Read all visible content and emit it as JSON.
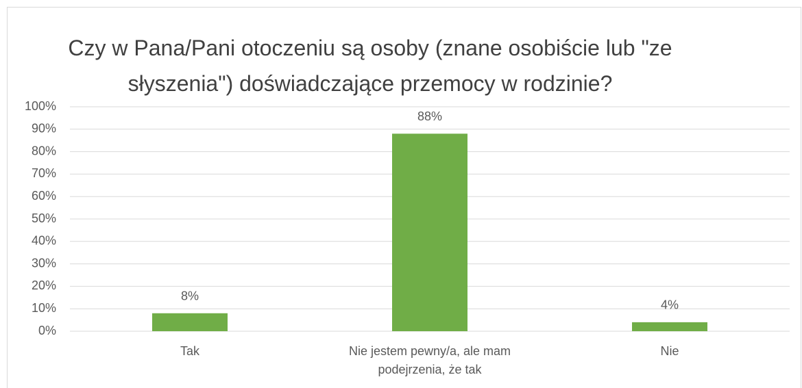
{
  "chart_data": {
    "type": "bar",
    "title": "Czy w Pana/Pani otoczeniu są osoby (znane osobiście lub \"ze słyszenia\") doświadczające przemocy w rodzinie?",
    "categories": [
      "Tak",
      "Nie jestem pewny/a, ale mam podejrzenia, że tak",
      "Nie"
    ],
    "values": [
      8,
      88,
      4
    ],
    "value_labels": [
      "8%",
      "88%",
      "4%"
    ],
    "color": "#70ad47",
    "ylim": [
      0,
      100
    ],
    "yticks": [
      {
        "value": 0,
        "label": "0%"
      },
      {
        "value": 10,
        "label": "10%"
      },
      {
        "value": 20,
        "label": "20%"
      },
      {
        "value": 30,
        "label": "30%"
      },
      {
        "value": 40,
        "label": "40%"
      },
      {
        "value": 50,
        "label": "50%"
      },
      {
        "value": 60,
        "label": "60%"
      },
      {
        "value": 70,
        "label": "70%"
      },
      {
        "value": 80,
        "label": "80%"
      },
      {
        "value": 90,
        "label": "90%"
      },
      {
        "value": 100,
        "label": "100%"
      }
    ],
    "grid": true
  }
}
